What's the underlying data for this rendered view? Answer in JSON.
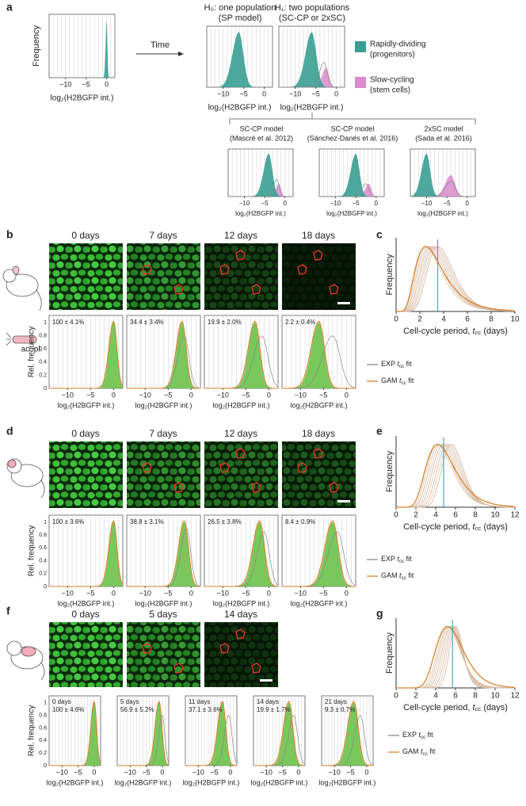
{
  "panel_labels": {
    "a": "a",
    "b": "b",
    "c": "c",
    "d": "d",
    "e": "e",
    "f": "f",
    "g": "g"
  },
  "a": {
    "initial": {
      "y_label": "Frequency",
      "xticks": [
        "−10",
        "−5",
        "0"
      ],
      "x_label": "log₂(H2BGFP int.)"
    },
    "arrow_label": "Time",
    "h0": {
      "title": [
        "H₀: one population",
        "(SP model)"
      ],
      "xticks": [
        "−10",
        "−5",
        "0"
      ],
      "x_label": "log₂(H2BGFP int.)"
    },
    "h1": {
      "title": [
        "H₁: two populations",
        "(SC-CP or 2xSC)"
      ],
      "xticks": [
        "−10",
        "−5",
        "0"
      ],
      "x_label": "log₂(H2BGFP int.)"
    },
    "legend": [
      [
        "Rapidly-dividing",
        "(progenitors)"
      ],
      [
        "Slow-cycling",
        "(stem cells)"
      ]
    ],
    "models": [
      {
        "title": [
          "SC-CP model",
          "(Mascré et al. 2012)"
        ],
        "xticks": [
          "−10",
          "−5",
          "0"
        ],
        "x_label": "log₂(H2BGFP int.)"
      },
      {
        "title": [
          "SC-CP model",
          "(Sánchez-Danés et al. 2016)"
        ],
        "xticks": [
          "−10",
          "−5",
          "0"
        ],
        "x_label": "log₂(H2BGFP int.)"
      },
      {
        "title": [
          "2xSC model",
          "(Sada et al. 2016)"
        ],
        "xticks": [
          "−10",
          "−5",
          "0"
        ],
        "x_label": "log₂(H2BGFP int.)"
      }
    ]
  },
  "b": {
    "image_label": "ac. pl.",
    "days": [
      "0 days",
      "7 days",
      "12 days",
      "18 days"
    ],
    "y_label": "Rel. frequency",
    "yticks": [
      "1",
      "0.8",
      "0.6",
      "0.4",
      "0.2",
      "0"
    ],
    "annotations": [
      "100 ± 4.1%",
      "34.4 ± 3.4%",
      "19.9 ± 2.0%",
      "2.2 ± 0.4%"
    ],
    "xticks": [
      "−10",
      "−5",
      "0"
    ],
    "x_label": "log₂(H2BGFP int.)",
    "legend": [
      {
        "prefix": "EXP ",
        "symbol": "t",
        "subscript": "cc",
        "suffix": " fit"
      },
      {
        "prefix": "GAM ",
        "symbol": "t",
        "subscript": "cc",
        "suffix": " fit"
      }
    ]
  },
  "c": {
    "y_label": "Frequency",
    "xticks": [
      "0",
      "2",
      "4",
      "6",
      "8",
      "10"
    ],
    "x_label": {
      "prefix": "Cell-cycle period, ",
      "symbol": "t",
      "subscript": "cc",
      "suffix": " (days)"
    }
  },
  "d": {
    "days": [
      "0 days",
      "7 days",
      "12 days",
      "18 days"
    ],
    "y_label": "Rel. frequency",
    "yticks": [
      "1",
      "0.8",
      "0.6",
      "0.4",
      "0.2",
      "0"
    ],
    "annotations": [
      "100 ± 3.6%",
      "38.8 ± 3.1%",
      "26.5 ± 3.8%",
      "8.4 ± 0.9%"
    ],
    "xticks": [
      "−10",
      "−5",
      "0"
    ],
    "x_label": "log₂(H2BGFP int.)",
    "legend": [
      {
        "prefix": "EXP ",
        "symbol": "t",
        "subscript": "cc",
        "suffix": " fit"
      },
      {
        "prefix": "GAM ",
        "symbol": "t",
        "subscript": "cc",
        "suffix": " fit"
      }
    ]
  },
  "e": {
    "y_label": "Frequency",
    "xticks": [
      "0",
      "2",
      "4",
      "6",
      "8",
      "10",
      "12"
    ],
    "x_label": {
      "prefix": "Cell-cycle period, ",
      "symbol": "t",
      "subscript": "cc",
      "suffix": " (days)"
    }
  },
  "f": {
    "days": [
      "0 days",
      "5 days",
      "14 days"
    ],
    "y_label": "Rel. frequency",
    "yticks": [
      "1",
      "0.8",
      "0.6",
      "0.4",
      "0.2",
      "0"
    ],
    "annotations": [
      [
        "0 days",
        "100 ± 4.6%"
      ],
      [
        "5 days",
        "56.9 ± 5.2%"
      ],
      [
        "11 days",
        "37.1 ± 3.6%"
      ],
      [
        "14 days",
        "19.9 ± 1.7%"
      ],
      [
        "21 days",
        "9.3 ± 0.7%"
      ]
    ],
    "xticks": [
      "−10",
      "−5",
      "0"
    ],
    "x_label": "log₂(H2BGFP int.)",
    "legend": [
      {
        "prefix": "EXP ",
        "symbol": "t",
        "subscript": "cc",
        "suffix": " fit"
      },
      {
        "prefix": "GAM ",
        "symbol": "t",
        "subscript": "cc",
        "suffix": " fit"
      }
    ]
  },
  "g": {
    "y_label": "Frequency",
    "xticks": [
      "0",
      "2",
      "4",
      "6",
      "8",
      "10",
      "12"
    ],
    "x_label": {
      "prefix": "Cell-cycle period, ",
      "symbol": "t",
      "subscript": "cc",
      "suffix": " (days)"
    }
  }
}
